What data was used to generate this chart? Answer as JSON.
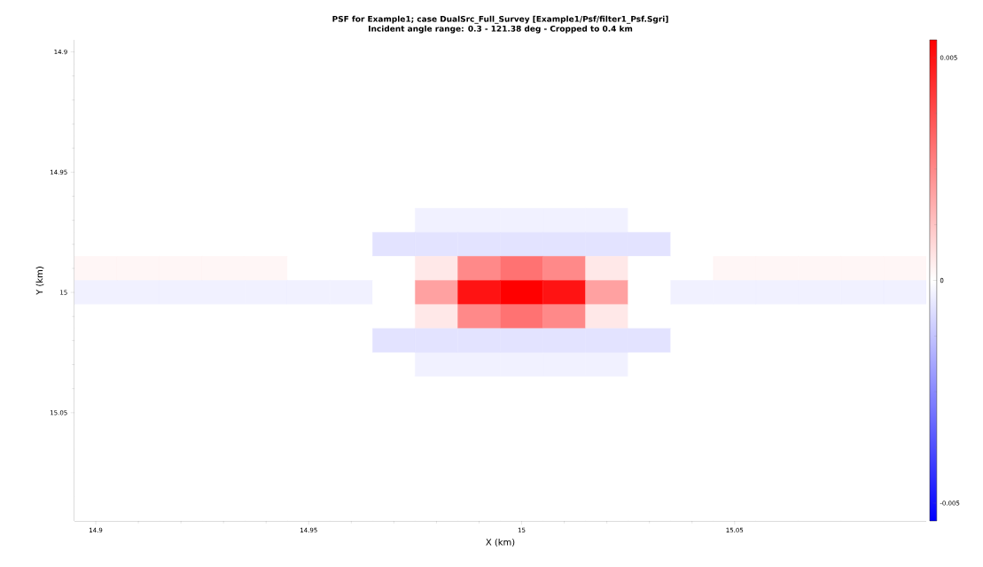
{
  "chart_data": {
    "type": "heatmap",
    "title": "PSF for Example1; case DualSrc_Full_Survey [Example1/Psf/filter1_Psf.Sgri]",
    "subtitle": "Incident angle range: 0.3 - 121.38 deg - Cropped to 0.4 km",
    "xlabel": "X (km)",
    "ylabel": "Y (km)",
    "x": [
      14.9,
      14.91,
      14.92,
      14.93,
      14.94,
      14.95,
      14.96,
      14.97,
      14.98,
      14.99,
      15,
      15.01,
      15.02,
      15.03,
      15.04,
      15.05,
      15.06,
      15.07,
      15.08,
      15.09
    ],
    "y": [
      14.9,
      14.91,
      14.92,
      14.93,
      14.94,
      14.95,
      14.96,
      14.97,
      14.98,
      14.99,
      15,
      15.01,
      15.02,
      15.03,
      15.04,
      15.05,
      15.06,
      15.07,
      15.08,
      15.09
    ],
    "xlim": [
      14.895,
      15.095
    ],
    "xticks": [
      14.9,
      14.95,
      15,
      15.05
    ],
    "ylim": [
      15.095,
      14.895
    ],
    "yticks": [
      14.9,
      14.95,
      15,
      15.05
    ],
    "clim": [
      -0.0054,
      0.0054
    ],
    "cticks": [
      -0.005,
      0,
      0.005
    ],
    "cells": [
      [
        0,
        0,
        0,
        0,
        0,
        0,
        0,
        0,
        0,
        0,
        0,
        0,
        0,
        0,
        0,
        0,
        0,
        0,
        0,
        0
      ],
      [
        0,
        0,
        0,
        0,
        0,
        0,
        0,
        0,
        0,
        0,
        0,
        0,
        0,
        0,
        0,
        0,
        0,
        0,
        0,
        0
      ],
      [
        0,
        0,
        0,
        0,
        0,
        0,
        0,
        0,
        0,
        0,
        0,
        0,
        0,
        0,
        0,
        0,
        0,
        0,
        0,
        0
      ],
      [
        0,
        0,
        0,
        0,
        0,
        0,
        0,
        0,
        0,
        0,
        0,
        0,
        0,
        0,
        0,
        0,
        0,
        0,
        0,
        0
      ],
      [
        0,
        0,
        0,
        0,
        0,
        0,
        0,
        0,
        0,
        0,
        0,
        0,
        0,
        0,
        0,
        0,
        0,
        0,
        0,
        0
      ],
      [
        0,
        0,
        0,
        0,
        0,
        0,
        0,
        0,
        0,
        0,
        0,
        0,
        0,
        0,
        0,
        0,
        0,
        0,
        0,
        0
      ],
      [
        0,
        0,
        0,
        0,
        0,
        0,
        0,
        0,
        0,
        0,
        0,
        0,
        0,
        0,
        0,
        0,
        0,
        0,
        0,
        0
      ],
      [
        0,
        0,
        0,
        0,
        0,
        0,
        0,
        0,
        -0.0003,
        -0.0003,
        -0.0003,
        -0.0003,
        -0.0003,
        0,
        0,
        0,
        0,
        0,
        0,
        0
      ],
      [
        0,
        0,
        0,
        0,
        0,
        0,
        0,
        -0.0006,
        -0.0006,
        -0.0006,
        -0.0006,
        -0.0006,
        -0.0006,
        -0.0006,
        0,
        0,
        0,
        0,
        0,
        0
      ],
      [
        0.0002,
        0.0002,
        0.0002,
        0.0002,
        0.0002,
        0,
        0,
        0,
        0.0005,
        0.0025,
        0.003,
        0.0025,
        0.0005,
        0,
        0,
        0.0002,
        0.0002,
        0.0002,
        0.0002,
        0.0002
      ],
      [
        -0.0003,
        -0.0003,
        -0.0003,
        -0.0003,
        -0.0003,
        -0.0003,
        -0.0003,
        0,
        0.002,
        0.005,
        0.0054,
        0.005,
        0.002,
        0,
        -0.0003,
        -0.0003,
        -0.0003,
        -0.0003,
        -0.0003,
        -0.0003
      ],
      [
        0,
        0,
        0,
        0,
        0,
        0,
        0,
        0,
        0.0005,
        0.0025,
        0.003,
        0.0025,
        0.0005,
        0,
        0,
        0,
        0,
        0,
        0,
        0
      ],
      [
        0,
        0,
        0,
        0,
        0,
        0,
        0,
        -0.0006,
        -0.0006,
        -0.0006,
        -0.0006,
        -0.0006,
        -0.0006,
        -0.0006,
        0,
        0,
        0,
        0,
        0,
        0
      ],
      [
        0,
        0,
        0,
        0,
        0,
        0,
        0,
        0,
        -0.0003,
        -0.0003,
        -0.0003,
        -0.0003,
        -0.0003,
        0,
        0,
        0,
        0,
        0,
        0,
        0
      ],
      [
        0,
        0,
        0,
        0,
        0,
        0,
        0,
        0,
        0,
        0,
        0,
        0,
        0,
        0,
        0,
        0,
        0,
        0,
        0,
        0
      ],
      [
        0,
        0,
        0,
        0,
        0,
        0,
        0,
        0,
        0,
        0,
        0,
        0,
        0,
        0,
        0,
        0,
        0,
        0,
        0,
        0
      ],
      [
        0,
        0,
        0,
        0,
        0,
        0,
        0,
        0,
        0,
        0,
        0,
        0,
        0,
        0,
        0,
        0,
        0,
        0,
        0,
        0
      ],
      [
        0,
        0,
        0,
        0,
        0,
        0,
        0,
        0,
        0,
        0,
        0,
        0,
        0,
        0,
        0,
        0,
        0,
        0,
        0,
        0
      ],
      [
        0,
        0,
        0,
        0,
        0,
        0,
        0,
        0,
        0,
        0,
        0,
        0,
        0,
        0,
        0,
        0,
        0,
        0,
        0,
        0
      ],
      [
        0,
        0,
        0,
        0,
        0,
        0,
        0,
        0,
        0,
        0,
        0,
        0,
        0,
        0,
        0,
        0,
        0,
        0,
        0,
        0
      ]
    ]
  }
}
